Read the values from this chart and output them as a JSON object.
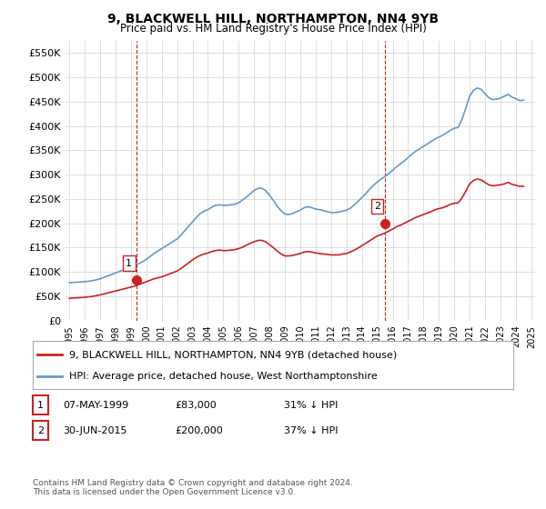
{
  "title": "9, BLACKWELL HILL, NORTHAMPTON, NN4 9YB",
  "subtitle": "Price paid vs. HM Land Registry's House Price Index (HPI)",
  "ylim": [
    0,
    575000
  ],
  "yticks": [
    0,
    50000,
    100000,
    150000,
    200000,
    250000,
    300000,
    350000,
    400000,
    450000,
    500000,
    550000
  ],
  "ytick_labels": [
    "£0",
    "£50K",
    "£100K",
    "£150K",
    "£200K",
    "£250K",
    "£300K",
    "£350K",
    "£400K",
    "£450K",
    "£500K",
    "£550K"
  ],
  "hpi_color": "#6699cc",
  "price_color": "#cc2222",
  "marker1_date": 1999.37,
  "marker1_price": 83000,
  "marker1_label": "1",
  "marker2_date": 2015.5,
  "marker2_price": 200000,
  "marker2_label": "2",
  "vline_color": "#cc2222",
  "legend_label_red": "9, BLACKWELL HILL, NORTHAMPTON, NN4 9YB (detached house)",
  "legend_label_blue": "HPI: Average price, detached house, West Northamptonshire",
  "table_row1": [
    "1",
    "07-MAY-1999",
    "£83,000",
    "31% ↓ HPI"
  ],
  "table_row2": [
    "2",
    "30-JUN-2015",
    "£200,000",
    "37% ↓ HPI"
  ],
  "footer": "Contains HM Land Registry data © Crown copyright and database right 2024.\nThis data is licensed under the Open Government Licence v3.0.",
  "bg_color": "#ffffff",
  "grid_color": "#dddddd",
  "hpi_data_x": [
    1995.0,
    1995.25,
    1995.5,
    1995.75,
    1996.0,
    1996.25,
    1996.5,
    1996.75,
    1997.0,
    1997.25,
    1997.5,
    1997.75,
    1998.0,
    1998.25,
    1998.5,
    1998.75,
    1999.0,
    1999.25,
    1999.5,
    1999.75,
    2000.0,
    2000.25,
    2000.5,
    2000.75,
    2001.0,
    2001.25,
    2001.5,
    2001.75,
    2002.0,
    2002.25,
    2002.5,
    2002.75,
    2003.0,
    2003.25,
    2003.5,
    2003.75,
    2004.0,
    2004.25,
    2004.5,
    2004.75,
    2005.0,
    2005.25,
    2005.5,
    2005.75,
    2006.0,
    2006.25,
    2006.5,
    2006.75,
    2007.0,
    2007.25,
    2007.5,
    2007.75,
    2008.0,
    2008.25,
    2008.5,
    2008.75,
    2009.0,
    2009.25,
    2009.5,
    2009.75,
    2010.0,
    2010.25,
    2010.5,
    2010.75,
    2011.0,
    2011.25,
    2011.5,
    2011.75,
    2012.0,
    2012.25,
    2012.5,
    2012.75,
    2013.0,
    2013.25,
    2013.5,
    2013.75,
    2014.0,
    2014.25,
    2014.5,
    2014.75,
    2015.0,
    2015.25,
    2015.5,
    2015.75,
    2016.0,
    2016.25,
    2016.5,
    2016.75,
    2017.0,
    2017.25,
    2017.5,
    2017.75,
    2018.0,
    2018.25,
    2018.5,
    2018.75,
    2019.0,
    2019.25,
    2019.5,
    2019.75,
    2020.0,
    2020.25,
    2020.5,
    2020.75,
    2021.0,
    2021.25,
    2021.5,
    2021.75,
    2022.0,
    2022.25,
    2022.5,
    2022.75,
    2023.0,
    2023.25,
    2023.5,
    2023.75,
    2024.0,
    2024.25,
    2024.5
  ],
  "hpi_data_y": [
    78000,
    78500,
    79000,
    79500,
    80000,
    81000,
    82000,
    84000,
    86000,
    89000,
    92000,
    95000,
    98000,
    101000,
    104000,
    107000,
    110000,
    113000,
    117000,
    121000,
    126000,
    132000,
    138000,
    143000,
    148000,
    153000,
    158000,
    163000,
    168000,
    176000,
    185000,
    194000,
    203000,
    212000,
    220000,
    225000,
    228000,
    233000,
    237000,
    238000,
    237000,
    237000,
    238000,
    239000,
    242000,
    248000,
    254000,
    261000,
    267000,
    272000,
    272000,
    267000,
    258000,
    247000,
    235000,
    226000,
    219000,
    218000,
    220000,
    224000,
    227000,
    232000,
    234000,
    232000,
    229000,
    228000,
    226000,
    224000,
    222000,
    222000,
    223000,
    225000,
    227000,
    231000,
    238000,
    245000,
    253000,
    261000,
    270000,
    278000,
    285000,
    291000,
    296000,
    302000,
    309000,
    316000,
    322000,
    328000,
    335000,
    342000,
    348000,
    353000,
    358000,
    363000,
    368000,
    373000,
    377000,
    381000,
    386000,
    391000,
    395000,
    397000,
    413000,
    437000,
    461000,
    473000,
    478000,
    475000,
    466000,
    458000,
    454000,
    455000,
    457000,
    461000,
    465000,
    459000,
    456000,
    452000,
    453000
  ],
  "price_data_x": [
    1995.0,
    1995.25,
    1995.5,
    1995.75,
    1996.0,
    1996.25,
    1996.5,
    1996.75,
    1997.0,
    1997.25,
    1997.5,
    1997.75,
    1998.0,
    1998.25,
    1998.5,
    1998.75,
    1999.0,
    1999.25,
    1999.5,
    1999.75,
    2000.0,
    2000.25,
    2000.5,
    2000.75,
    2001.0,
    2001.25,
    2001.5,
    2001.75,
    2002.0,
    2002.25,
    2002.5,
    2002.75,
    2003.0,
    2003.25,
    2003.5,
    2003.75,
    2004.0,
    2004.25,
    2004.5,
    2004.75,
    2005.0,
    2005.25,
    2005.5,
    2005.75,
    2006.0,
    2006.25,
    2006.5,
    2006.75,
    2007.0,
    2007.25,
    2007.5,
    2007.75,
    2008.0,
    2008.25,
    2008.5,
    2008.75,
    2009.0,
    2009.25,
    2009.5,
    2009.75,
    2010.0,
    2010.25,
    2010.5,
    2010.75,
    2011.0,
    2011.25,
    2011.5,
    2011.75,
    2012.0,
    2012.25,
    2012.5,
    2012.75,
    2013.0,
    2013.25,
    2013.5,
    2013.75,
    2014.0,
    2014.25,
    2014.5,
    2014.75,
    2015.0,
    2015.25,
    2015.5,
    2015.75,
    2016.0,
    2016.25,
    2016.5,
    2016.75,
    2017.0,
    2017.25,
    2017.5,
    2017.75,
    2018.0,
    2018.25,
    2018.5,
    2018.75,
    2019.0,
    2019.25,
    2019.5,
    2019.75,
    2020.0,
    2020.25,
    2020.5,
    2020.75,
    2021.0,
    2021.25,
    2021.5,
    2021.75,
    2022.0,
    2022.25,
    2022.5,
    2022.75,
    2023.0,
    2023.25,
    2023.5,
    2023.75,
    2024.0,
    2024.25,
    2024.5
  ],
  "price_data_y": [
    46000,
    46500,
    47000,
    47500,
    48000,
    49000,
    50000,
    51500,
    53000,
    55000,
    57000,
    59000,
    61000,
    63000,
    65000,
    67000,
    69000,
    71000,
    74000,
    77000,
    80000,
    83000,
    86000,
    88000,
    90000,
    93000,
    96000,
    99000,
    102000,
    107000,
    113000,
    119000,
    125000,
    130000,
    134000,
    137000,
    139000,
    142000,
    144000,
    145000,
    144000,
    144000,
    145000,
    146000,
    148000,
    151000,
    155000,
    159000,
    162000,
    165000,
    165000,
    162000,
    156000,
    150000,
    143000,
    137000,
    133000,
    133000,
    134000,
    136000,
    138000,
    141000,
    142000,
    141000,
    139000,
    138000,
    137000,
    136000,
    135000,
    135000,
    135000,
    137000,
    138000,
    141000,
    145000,
    149000,
    154000,
    159000,
    164000,
    169000,
    174000,
    177000,
    180000,
    184000,
    188000,
    193000,
    196000,
    200000,
    204000,
    208000,
    212000,
    215000,
    218000,
    221000,
    224000,
    228000,
    230000,
    232000,
    235000,
    239000,
    241000,
    242000,
    252000,
    266000,
    281000,
    288000,
    291000,
    289000,
    284000,
    279000,
    277000,
    278000,
    279000,
    281000,
    284000,
    280000,
    278000,
    276000,
    276000
  ]
}
